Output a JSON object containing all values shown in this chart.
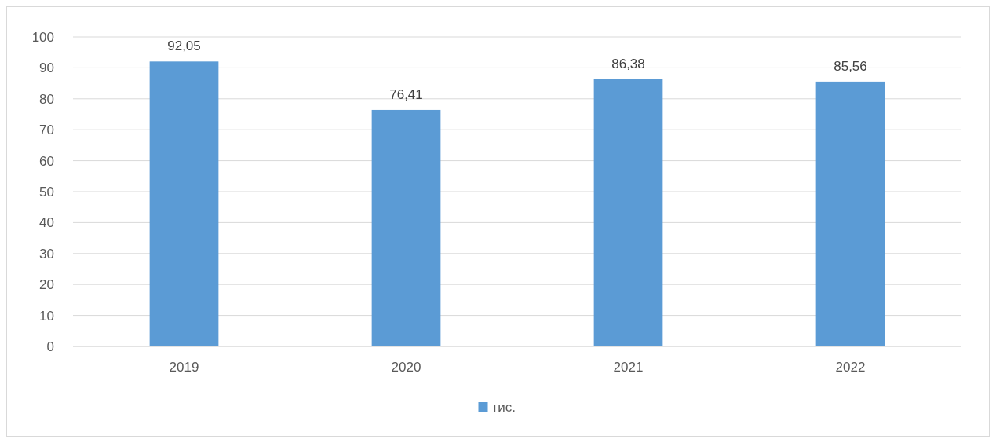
{
  "chart_data": {
    "type": "bar",
    "categories": [
      "2019",
      "2020",
      "2021",
      "2022"
    ],
    "series": [
      {
        "name": "тис.",
        "color": "#5b9bd5",
        "values": [
          92.05,
          76.41,
          86.38,
          85.56
        ],
        "value_labels": [
          "92,05",
          "76,41",
          "86,38",
          "85,56"
        ]
      }
    ],
    "ylim": [
      0,
      100
    ],
    "yticks": [
      0,
      10,
      20,
      30,
      40,
      50,
      60,
      70,
      80,
      90,
      100
    ],
    "grid": "y",
    "legend": "bottom"
  }
}
